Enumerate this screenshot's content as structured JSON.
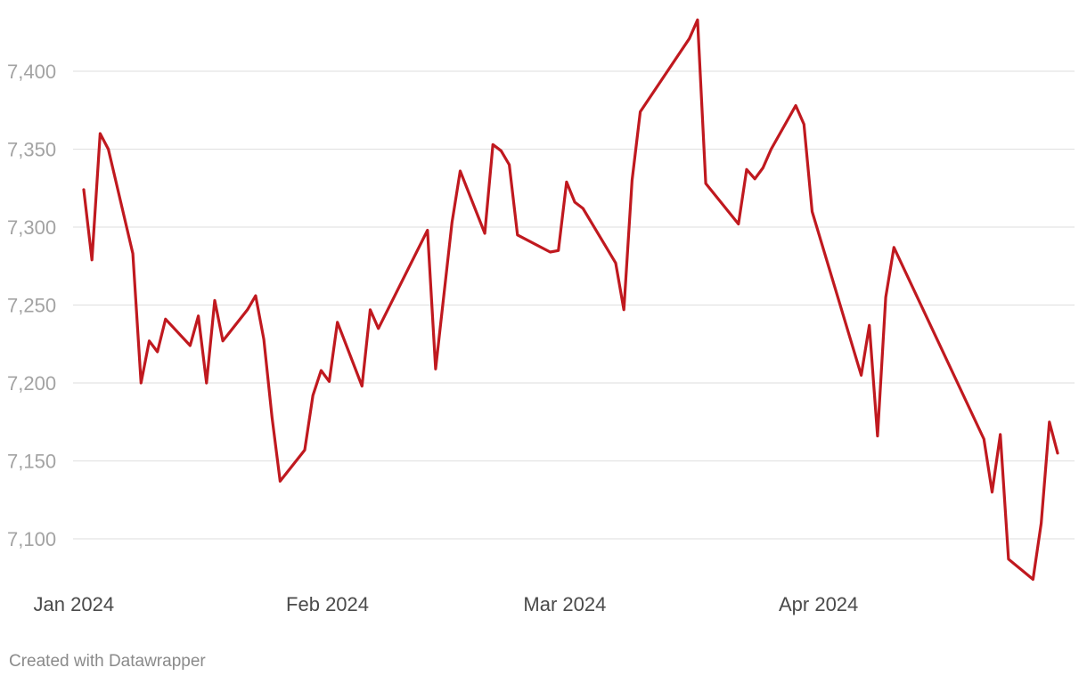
{
  "chart_data": {
    "type": "line",
    "title": "",
    "xlabel": "",
    "ylabel": "",
    "ylim": [
      7075,
      7430
    ],
    "xlim": [
      "2023-12-31",
      "2024-04-24"
    ],
    "y_ticks": [
      {
        "value": 7100,
        "label": "7,100"
      },
      {
        "value": 7150,
        "label": "7,150"
      },
      {
        "value": 7200,
        "label": "7,200"
      },
      {
        "value": 7250,
        "label": "7,250"
      },
      {
        "value": 7300,
        "label": "7,300"
      },
      {
        "value": 7350,
        "label": "7,350"
      },
      {
        "value": 7400,
        "label": "7,400"
      }
    ],
    "x_ticks": [
      {
        "value": "2024-01-01",
        "label": "Jan 2024"
      },
      {
        "value": "2024-02-01",
        "label": "Feb 2024"
      },
      {
        "value": "2024-03-01",
        "label": "Mar 2024"
      },
      {
        "value": "2024-04-01",
        "label": "Apr 2024"
      }
    ],
    "grid": true,
    "legend": "none",
    "series": [
      {
        "color": "#c0191f",
        "points": [
          [
            "2024-01-02",
            7324
          ],
          [
            "2024-01-03",
            7279
          ],
          [
            "2024-01-04",
            7360
          ],
          [
            "2024-01-05",
            7350
          ],
          [
            "2024-01-08",
            7283
          ],
          [
            "2024-01-09",
            7200
          ],
          [
            "2024-01-10",
            7227
          ],
          [
            "2024-01-11",
            7220
          ],
          [
            "2024-01-12",
            7241
          ],
          [
            "2024-01-15",
            7224
          ],
          [
            "2024-01-16",
            7243
          ],
          [
            "2024-01-17",
            7200
          ],
          [
            "2024-01-18",
            7253
          ],
          [
            "2024-01-19",
            7227
          ],
          [
            "2024-01-22",
            7247
          ],
          [
            "2024-01-23",
            7256
          ],
          [
            "2024-01-24",
            7228
          ],
          [
            "2024-01-25",
            7178
          ],
          [
            "2024-01-26",
            7137
          ],
          [
            "2024-01-29",
            7157
          ],
          [
            "2024-01-30",
            7192
          ],
          [
            "2024-01-31",
            7208
          ],
          [
            "2024-02-01",
            7201
          ],
          [
            "2024-02-02",
            7239
          ],
          [
            "2024-02-05",
            7198
          ],
          [
            "2024-02-06",
            7247
          ],
          [
            "2024-02-07",
            7235
          ],
          [
            "2024-02-13",
            7298
          ],
          [
            "2024-02-14",
            7209
          ],
          [
            "2024-02-16",
            7303
          ],
          [
            "2024-02-17",
            7336
          ],
          [
            "2024-02-20",
            7296
          ],
          [
            "2024-02-21",
            7353
          ],
          [
            "2024-02-22",
            7349
          ],
          [
            "2024-02-23",
            7340
          ],
          [
            "2024-02-24",
            7295
          ],
          [
            "2024-02-28",
            7284
          ],
          [
            "2024-02-29",
            7285
          ],
          [
            "2024-03-01",
            7329
          ],
          [
            "2024-03-02",
            7316
          ],
          [
            "2024-03-03",
            7312
          ],
          [
            "2024-03-07",
            7277
          ],
          [
            "2024-03-08",
            7247
          ],
          [
            "2024-03-09",
            7330
          ],
          [
            "2024-03-10",
            7374
          ],
          [
            "2024-03-16",
            7421
          ],
          [
            "2024-03-17",
            7433
          ],
          [
            "2024-03-18",
            7328
          ],
          [
            "2024-03-22",
            7302
          ],
          [
            "2024-03-23",
            7337
          ],
          [
            "2024-03-24",
            7331
          ],
          [
            "2024-03-25",
            7338
          ],
          [
            "2024-03-26",
            7350
          ],
          [
            "2024-03-29",
            7378
          ],
          [
            "2024-03-30",
            7366
          ],
          [
            "2024-03-31",
            7310
          ],
          [
            "2024-04-06",
            7205
          ],
          [
            "2024-04-07",
            7237
          ],
          [
            "2024-04-08",
            7166
          ],
          [
            "2024-04-09",
            7255
          ],
          [
            "2024-04-10",
            7287
          ],
          [
            "2024-04-21",
            7164
          ],
          [
            "2024-04-22",
            7130
          ],
          [
            "2024-04-23",
            7167
          ],
          [
            "2024-04-24",
            7087
          ],
          [
            "2024-04-27",
            7074
          ],
          [
            "2024-04-28",
            7110
          ],
          [
            "2024-04-29",
            7175
          ],
          [
            "2024-04-30",
            7155
          ]
        ]
      }
    ]
  },
  "footer": {
    "credit": "Created with Datawrapper"
  }
}
